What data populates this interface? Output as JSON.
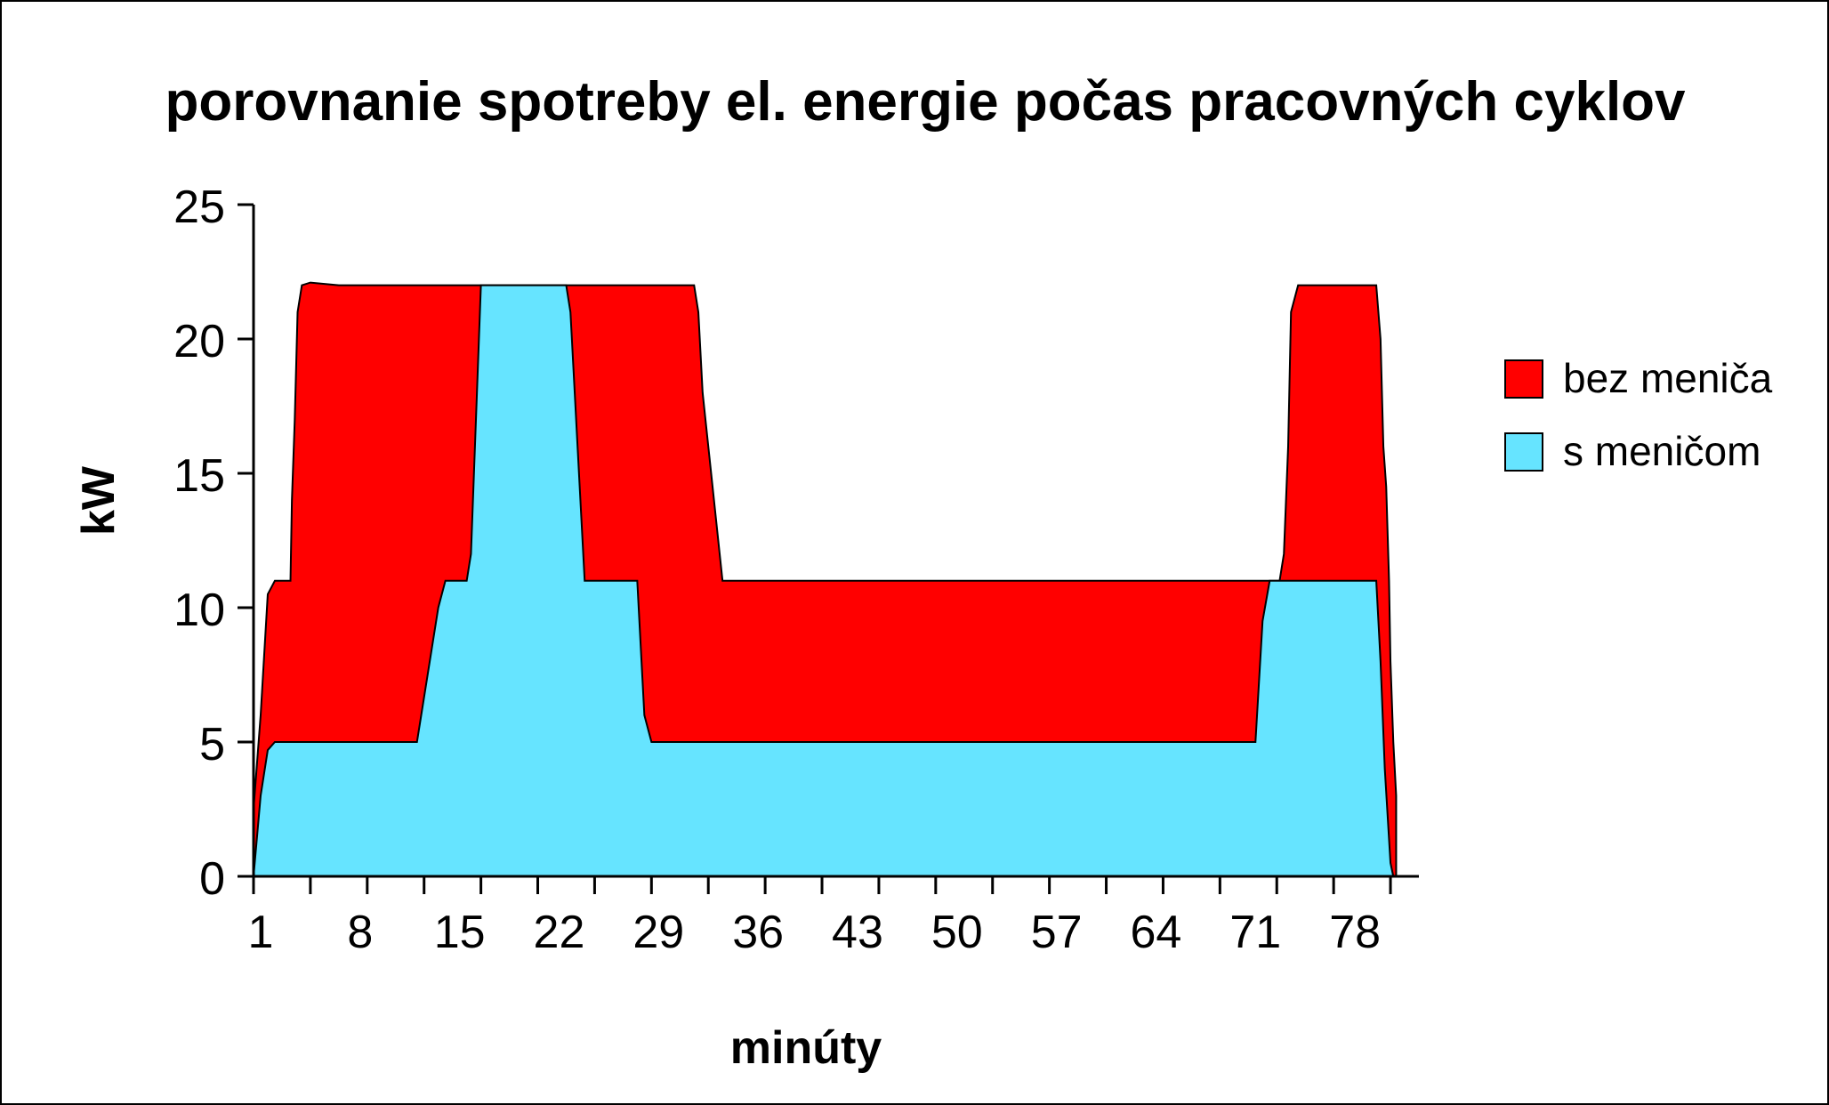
{
  "chart_data": {
    "type": "area",
    "title": "porovnanie spotreby el. energie počas pracovných cyklov",
    "xlabel": "minúty",
    "ylabel": "kW",
    "ylim": [
      0,
      25
    ],
    "xlim": [
      0,
      82
    ],
    "y_ticks": [
      0,
      5,
      10,
      15,
      20,
      25
    ],
    "x_tick_labels": [
      "1",
      "8",
      "15",
      "22",
      "29",
      "36",
      "43",
      "50",
      "57",
      "64",
      "71",
      "78"
    ],
    "x_tick_label_positions": [
      1,
      8,
      15,
      22,
      29,
      36,
      43,
      50,
      57,
      64,
      71,
      78
    ],
    "grid": false,
    "legend_position": "right",
    "series": [
      {
        "name": "bez meniča",
        "color": "#ff0000",
        "x": [
          0,
          0.5,
          1,
          1.5,
          2,
          2.6,
          2.7,
          2.9,
          3.1,
          3.4,
          4,
          6,
          10,
          16,
          20,
          24,
          28,
          31,
          31.3,
          31.6,
          31.8,
          32,
          33,
          40,
          50,
          60,
          70,
          71.5,
          72.2,
          72.5,
          72.8,
          73,
          73.5,
          78.5,
          79,
          79.3,
          79.5,
          79.7,
          79.9,
          80,
          80.2,
          80.4
        ],
        "values": [
          2.5,
          6,
          10.5,
          11,
          11,
          11,
          14,
          17,
          21,
          22,
          22.1,
          22,
          22,
          22,
          22,
          22,
          22,
          22,
          21,
          18,
          17,
          16,
          11,
          11,
          11,
          11,
          11,
          11,
          11,
          12,
          16,
          21,
          22,
          22,
          22,
          20,
          16,
          14.5,
          11,
          8,
          5,
          3
        ]
      },
      {
        "name": "s meničom",
        "color": "#66e4ff",
        "x": [
          0,
          0.5,
          1,
          1.5,
          2,
          4,
          8,
          11.5,
          13,
          13.5,
          15,
          15.3,
          16,
          17,
          20,
          22,
          22.3,
          23.3,
          25,
          27,
          27.5,
          28,
          35,
          45,
          55,
          65,
          70.5,
          71,
          71.5,
          72,
          75,
          78.5,
          79,
          79.3,
          79.6,
          80,
          80.2
        ],
        "values": [
          0,
          3,
          4.7,
          5,
          5,
          5,
          5,
          5,
          10,
          11,
          11,
          12,
          22,
          22,
          22,
          22,
          21,
          11,
          11,
          11,
          6,
          5,
          5,
          5,
          5,
          5,
          5,
          9.5,
          11,
          11,
          11,
          11,
          11,
          8,
          4,
          0.5,
          0
        ]
      }
    ]
  }
}
